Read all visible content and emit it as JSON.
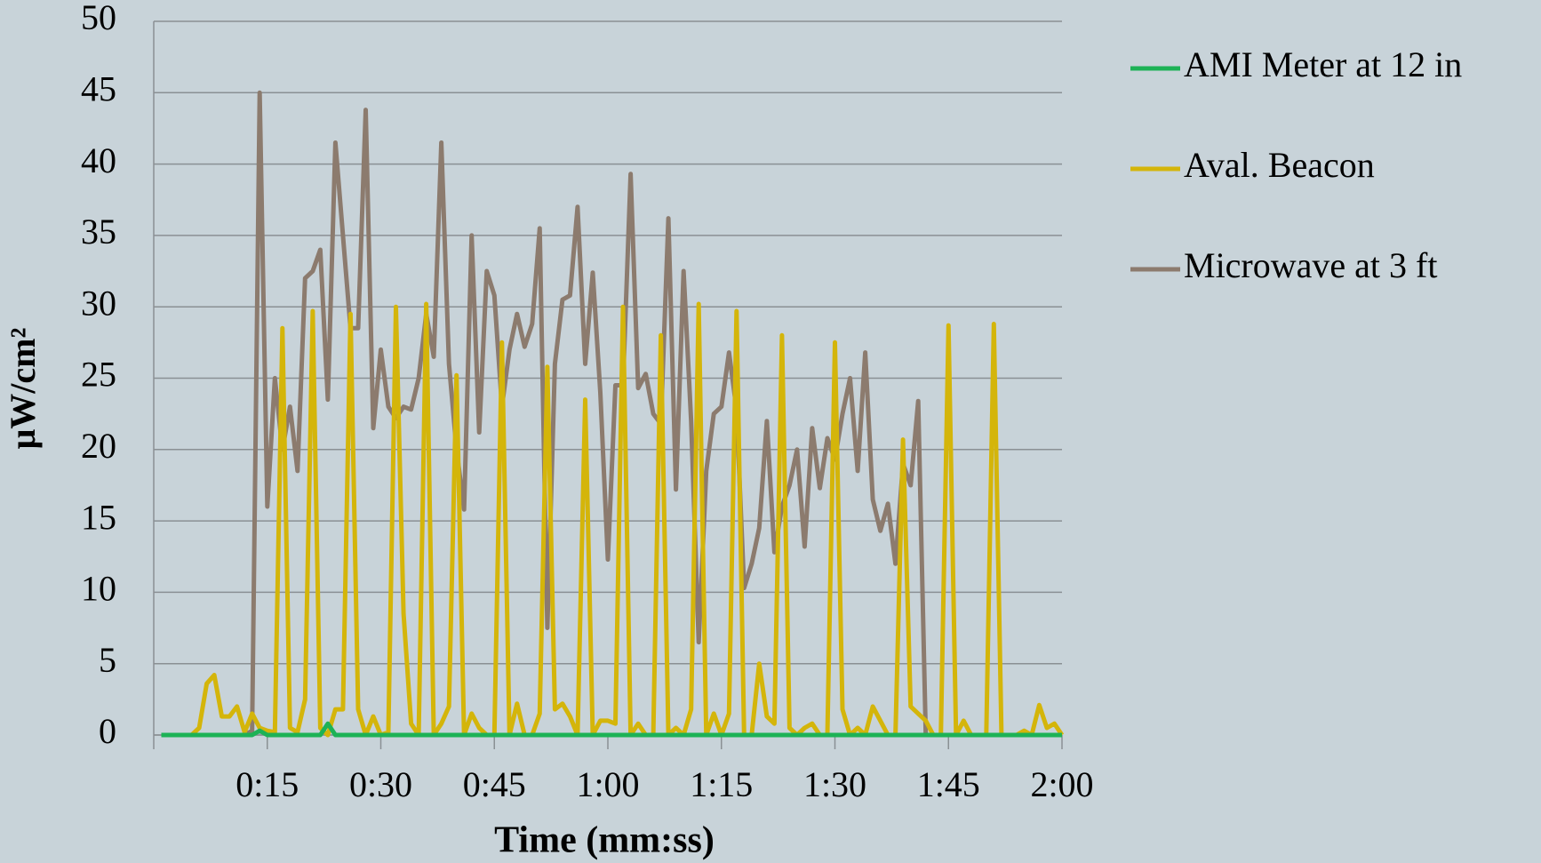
{
  "chart_data": {
    "type": "line",
    "ylabel": "μW/cm²",
    "xlabel": "Time (mm:ss)",
    "xlim": [
      0,
      120
    ],
    "ylim": [
      0,
      50
    ],
    "xticks": [
      {
        "value": 15,
        "label": "0:15"
      },
      {
        "value": 30,
        "label": "0:30"
      },
      {
        "value": 45,
        "label": "0:45"
      },
      {
        "value": 60,
        "label": "1:00"
      },
      {
        "value": 75,
        "label": "1:15"
      },
      {
        "value": 90,
        "label": "1:30"
      },
      {
        "value": 105,
        "label": "1:45"
      },
      {
        "value": 120,
        "label": "2:00"
      }
    ],
    "yticks": [
      0,
      5,
      10,
      15,
      20,
      25,
      30,
      35,
      40,
      45,
      50
    ],
    "grid": true,
    "legend": "right",
    "x": [
      1,
      2,
      3,
      4,
      5,
      6,
      7,
      8,
      9,
      10,
      11,
      12,
      13,
      14,
      15,
      16,
      17,
      18,
      19,
      20,
      21,
      22,
      23,
      24,
      25,
      26,
      27,
      28,
      29,
      30,
      31,
      32,
      33,
      34,
      35,
      36,
      37,
      38,
      39,
      40,
      41,
      42,
      43,
      44,
      45,
      46,
      47,
      48,
      49,
      50,
      51,
      52,
      53,
      54,
      55,
      56,
      57,
      58,
      59,
      60,
      61,
      62,
      63,
      64,
      65,
      66,
      67,
      68,
      69,
      70,
      71,
      72,
      73,
      74,
      75,
      76,
      77,
      78,
      79,
      80,
      81,
      82,
      83,
      84,
      85,
      86,
      87,
      88,
      89,
      90,
      91,
      92,
      93,
      94,
      95,
      96,
      97,
      98,
      99,
      100,
      101,
      102,
      103,
      104,
      105,
      106,
      107,
      108,
      109,
      110,
      111,
      112,
      113,
      114,
      115,
      116,
      117,
      118,
      119,
      120
    ],
    "series": [
      {
        "name": "AMI Meter at 12 in",
        "color": "#1db256",
        "values": [
          0,
          0,
          0,
          0,
          0,
          0,
          0,
          0,
          0,
          0,
          0,
          0,
          0,
          0.3,
          0,
          0,
          0,
          0,
          0,
          0,
          0,
          0,
          0.8,
          0,
          0,
          0,
          0,
          0,
          0,
          0,
          0,
          0,
          0,
          0,
          0,
          0,
          0,
          0,
          0,
          0,
          0,
          0,
          0,
          0,
          0,
          0,
          0,
          0,
          0,
          0,
          0,
          0,
          0,
          0,
          0,
          0,
          0,
          0,
          0,
          0,
          0,
          0,
          0,
          0,
          0,
          0,
          0,
          0,
          0,
          0,
          0,
          0,
          0,
          0,
          0,
          0,
          0,
          0,
          0,
          0,
          0,
          0,
          0,
          0,
          0,
          0,
          0,
          0,
          0,
          0,
          0,
          0,
          0,
          0,
          0,
          0,
          0,
          0,
          0,
          0,
          0,
          0,
          0,
          0,
          0,
          0,
          0,
          0,
          0,
          0,
          0,
          0,
          0,
          0,
          0,
          0,
          0,
          0,
          0,
          0
        ]
      },
      {
        "name": "Aval. Beacon",
        "color": "#d4b50a",
        "values": [
          0,
          0,
          0,
          0,
          0,
          0.5,
          3.6,
          4.2,
          1.3,
          1.3,
          2,
          0.2,
          1.5,
          0.5,
          0.3,
          0.2,
          28.5,
          0.5,
          0.2,
          2.5,
          29.7,
          0.5,
          0,
          1.8,
          1.8,
          29.5,
          1.8,
          0,
          1.3,
          0,
          0.2,
          30,
          8.5,
          0.8,
          0,
          30.2,
          0,
          0.8,
          2,
          25.2,
          0,
          1.5,
          0.5,
          0,
          0,
          27.5,
          0,
          2.2,
          0,
          0,
          1.5,
          25.8,
          1.8,
          2.2,
          1.3,
          0,
          23.5,
          0,
          1,
          1,
          0.8,
          30,
          0,
          0.8,
          0,
          0,
          28,
          0,
          0.5,
          0,
          1.8,
          30.2,
          0,
          1.5,
          0,
          1.5,
          29.7,
          0,
          0,
          5,
          1.3,
          0.8,
          28,
          0.5,
          0,
          0.5,
          0.8,
          0,
          0,
          27.5,
          1.8,
          0,
          0.5,
          0,
          2,
          1,
          0,
          0,
          20.7,
          2,
          1.5,
          1,
          0,
          0,
          28.7,
          0,
          1,
          0,
          0,
          0,
          28.8,
          0,
          0,
          0,
          0.3,
          0,
          2.1,
          0.5,
          0.8,
          0
        ]
      },
      {
        "name": "Microwave at 3 ft",
        "color": "#8c7b6e",
        "values": [
          0,
          0,
          0,
          0,
          0,
          0,
          0,
          0,
          0,
          0,
          0,
          0,
          0.3,
          45,
          16,
          25,
          20,
          23,
          18.5,
          32,
          32.5,
          34,
          23.5,
          41.5,
          35,
          28.5,
          28.5,
          43.8,
          21.5,
          27,
          23,
          22.2,
          23,
          22.8,
          25,
          29.5,
          26.5,
          41.5,
          26,
          20,
          15.8,
          35,
          21.2,
          32.5,
          30.8,
          23,
          27,
          29.5,
          27.2,
          28.8,
          35.5,
          7.5,
          26,
          30.5,
          30.8,
          37,
          26,
          32.4,
          24,
          12.3,
          24.5,
          24.5,
          39.3,
          24.3,
          25.3,
          22.5,
          21.8,
          36.2,
          17.2,
          32.5,
          22,
          6.5,
          18.5,
          22.5,
          23,
          26.8,
          22.8,
          10.3,
          12,
          14.5,
          22,
          12.8,
          16,
          17.5,
          20,
          13.2,
          21.5,
          17.3,
          20.8,
          19.3,
          22.5,
          25,
          18.5,
          26.8,
          16.5,
          14.3,
          16.2,
          12,
          19,
          17.5,
          23.4,
          0,
          0,
          0,
          0,
          0,
          0,
          0,
          0,
          0,
          0,
          0,
          0,
          0,
          0,
          0,
          0,
          0,
          0,
          0
        ]
      }
    ]
  }
}
